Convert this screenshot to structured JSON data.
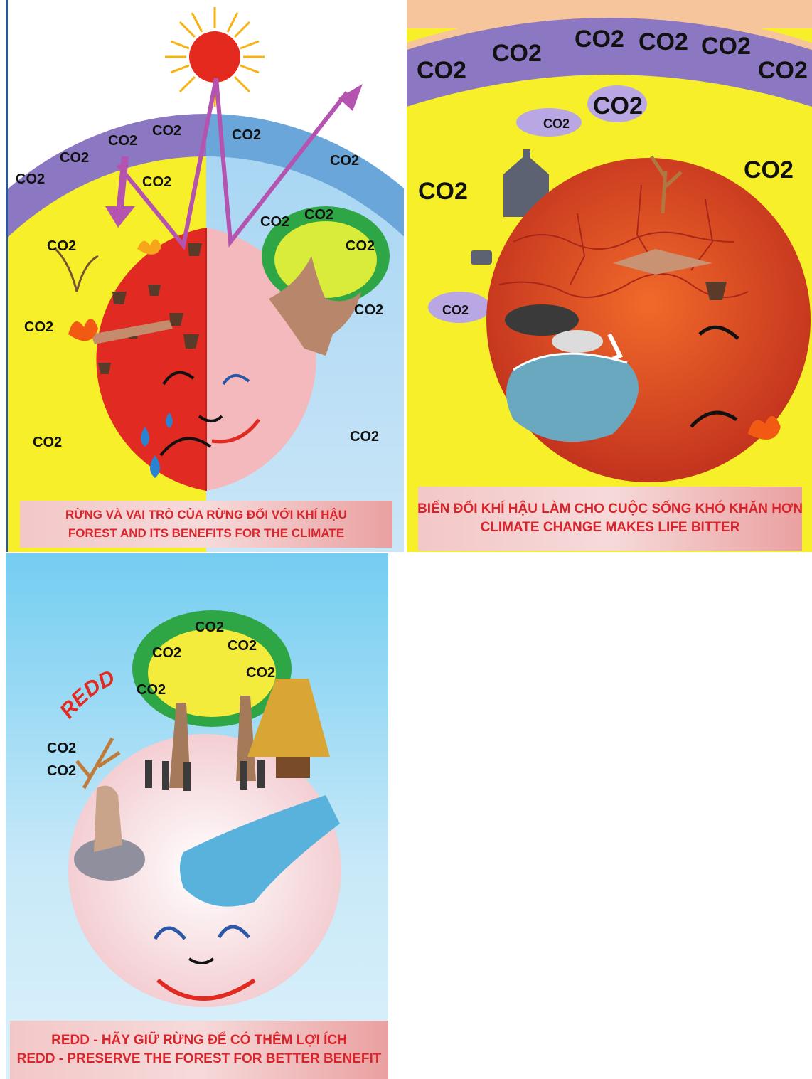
{
  "posters": [
    {
      "caption_vi": "RỪNG VÀ VAI TRÒ CỦA RỪNG ĐỐI VỚI KHÍ HẬU",
      "caption_en": "FOREST AND ITS BENEFITS FOR THE CLIMATE",
      "gas_label": "CO2"
    },
    {
      "caption_vi": "BIẾN ĐỔI KHÍ HẬU LÀM CHO CUỘC SỐNG KHÓ KHĂN HƠN",
      "caption_en": "CLIMATE CHANGE MAKES LIFE BITTER",
      "gas_label": "CO2"
    },
    {
      "caption_vi": "REDD - HÃY GIỮ RỪNG ĐỂ CÓ THÊM LỢI ÍCH",
      "caption_en": "REDD - PRESERVE THE FOREST FOR BETTER BENEFIT",
      "gas_label": "CO2",
      "badge": "REDD"
    }
  ],
  "colors": {
    "sky_yellow": "#f7ef2a",
    "atmosphere_purple": "#8c78c2",
    "earth_red": "#e12b22",
    "earth_pink": "#f4b9bd",
    "caption_text": "#d8242a",
    "sky_blue": "#74cdf1"
  }
}
